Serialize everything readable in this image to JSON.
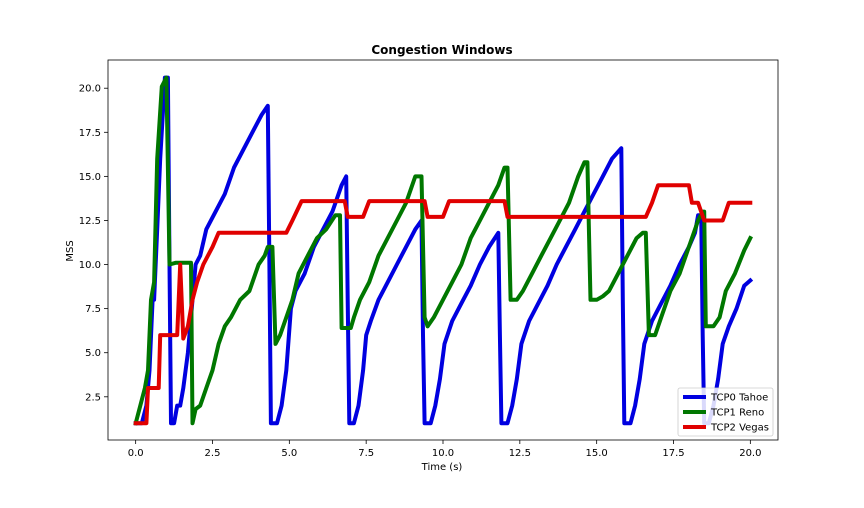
{
  "chart_data": {
    "type": "line",
    "title": "Congestion Windows",
    "xlabel": "Time (s)",
    "ylabel": "MSS",
    "xlim": [
      -0.9,
      20.9
    ],
    "ylim": [
      0.05,
      21.6
    ],
    "xticks": [
      0,
      2.5,
      5,
      7.5,
      10,
      12.5,
      15,
      17.5,
      20
    ],
    "xtick_labels": [
      "0.0",
      "2.5",
      "5.0",
      "7.5",
      "10.0",
      "12.5",
      "15.0",
      "17.5",
      "20.0"
    ],
    "yticks": [
      2.5,
      5,
      7.5,
      10,
      12.5,
      15,
      17.5,
      20
    ],
    "ytick_labels": [
      "2.5",
      "5.0",
      "7.5",
      "10.0",
      "12.5",
      "15.0",
      "17.5",
      "20.0"
    ],
    "grid": false,
    "legend_position": "bottom-right",
    "series": [
      {
        "name": "TCP0 Tahoe",
        "color": "#0000e0",
        "points": [
          [
            0,
            1
          ],
          [
            0.2,
            1
          ],
          [
            0.35,
            2
          ],
          [
            0.45,
            4
          ],
          [
            0.55,
            8
          ],
          [
            0.6,
            8
          ],
          [
            0.7,
            12
          ],
          [
            0.8,
            16
          ],
          [
            0.9,
            19
          ],
          [
            0.95,
            20.6
          ],
          [
            1.05,
            20.6
          ],
          [
            1.1,
            10
          ],
          [
            1.15,
            1
          ],
          [
            1.25,
            1
          ],
          [
            1.35,
            2
          ],
          [
            1.45,
            2
          ],
          [
            1.55,
            3
          ],
          [
            1.7,
            5
          ],
          [
            1.85,
            8
          ],
          [
            1.95,
            10
          ],
          [
            2.1,
            10.5
          ],
          [
            2.3,
            12
          ],
          [
            2.6,
            13
          ],
          [
            2.9,
            14
          ],
          [
            3.2,
            15.5
          ],
          [
            3.5,
            16.5
          ],
          [
            3.8,
            17.5
          ],
          [
            4.1,
            18.5
          ],
          [
            4.3,
            19
          ],
          [
            4.35,
            10
          ],
          [
            4.4,
            1
          ],
          [
            4.6,
            1
          ],
          [
            4.75,
            2
          ],
          [
            4.9,
            4
          ],
          [
            5.05,
            7.5
          ],
          [
            5.2,
            8.5
          ],
          [
            5.5,
            9.5
          ],
          [
            5.8,
            11
          ],
          [
            6.1,
            12
          ],
          [
            6.4,
            13
          ],
          [
            6.7,
            14.5
          ],
          [
            6.85,
            15
          ],
          [
            6.9,
            8
          ],
          [
            6.95,
            1
          ],
          [
            7.1,
            1
          ],
          [
            7.25,
            2
          ],
          [
            7.4,
            4
          ],
          [
            7.5,
            6
          ],
          [
            7.65,
            6.8
          ],
          [
            7.9,
            8
          ],
          [
            8.2,
            9
          ],
          [
            8.5,
            10
          ],
          [
            8.8,
            11
          ],
          [
            9.1,
            12
          ],
          [
            9.3,
            12.5
          ],
          [
            9.35,
            6
          ],
          [
            9.4,
            1
          ],
          [
            9.6,
            1
          ],
          [
            9.75,
            2
          ],
          [
            9.9,
            3.5
          ],
          [
            10.05,
            5.5
          ],
          [
            10.3,
            6.8
          ],
          [
            10.6,
            7.8
          ],
          [
            10.9,
            8.8
          ],
          [
            11.2,
            10
          ],
          [
            11.5,
            11
          ],
          [
            11.8,
            11.8
          ],
          [
            11.85,
            6
          ],
          [
            11.9,
            1
          ],
          [
            12.1,
            1
          ],
          [
            12.25,
            2
          ],
          [
            12.4,
            3.5
          ],
          [
            12.55,
            5.5
          ],
          [
            12.8,
            6.8
          ],
          [
            13.1,
            7.8
          ],
          [
            13.4,
            8.8
          ],
          [
            13.7,
            10
          ],
          [
            14,
            11
          ],
          [
            14.3,
            12
          ],
          [
            14.6,
            13
          ],
          [
            14.9,
            14
          ],
          [
            15.2,
            15
          ],
          [
            15.5,
            16
          ],
          [
            15.8,
            16.6
          ],
          [
            15.85,
            8
          ],
          [
            15.9,
            1
          ],
          [
            16.1,
            1
          ],
          [
            16.25,
            2
          ],
          [
            16.4,
            3.5
          ],
          [
            16.55,
            5.5
          ],
          [
            16.8,
            6.8
          ],
          [
            17.1,
            7.8
          ],
          [
            17.4,
            8.8
          ],
          [
            17.7,
            10
          ],
          [
            18,
            11
          ],
          [
            18.2,
            11.8
          ],
          [
            18.3,
            12.8
          ],
          [
            18.4,
            12.8
          ],
          [
            18.45,
            6
          ],
          [
            18.5,
            1
          ],
          [
            18.65,
            1
          ],
          [
            18.8,
            2
          ],
          [
            18.95,
            3.5
          ],
          [
            19.1,
            5.5
          ],
          [
            19.3,
            6.5
          ],
          [
            19.55,
            7.5
          ],
          [
            19.8,
            8.8
          ],
          [
            20,
            9.1
          ]
        ]
      },
      {
        "name": "TCP1 Reno",
        "color": "#007700",
        "points": [
          [
            0,
            1
          ],
          [
            0.15,
            2
          ],
          [
            0.3,
            3
          ],
          [
            0.4,
            4
          ],
          [
            0.5,
            8
          ],
          [
            0.6,
            9
          ],
          [
            0.7,
            16
          ],
          [
            0.85,
            20.1
          ],
          [
            1.0,
            20.6
          ],
          [
            1.1,
            10
          ],
          [
            1.3,
            10.1
          ],
          [
            1.8,
            10.1
          ],
          [
            1.85,
            1
          ],
          [
            1.95,
            1.8
          ],
          [
            2.1,
            2
          ],
          [
            2.3,
            3
          ],
          [
            2.5,
            4
          ],
          [
            2.7,
            5.5
          ],
          [
            2.9,
            6.5
          ],
          [
            3.1,
            7
          ],
          [
            3.4,
            8
          ],
          [
            3.7,
            8.5
          ],
          [
            4,
            10
          ],
          [
            4.2,
            10.5
          ],
          [
            4.3,
            11
          ],
          [
            4.45,
            11
          ],
          [
            4.55,
            5.5
          ],
          [
            4.7,
            6
          ],
          [
            4.9,
            7
          ],
          [
            5.1,
            8
          ],
          [
            5.3,
            9.5
          ],
          [
            5.6,
            10.5
          ],
          [
            5.9,
            11.5
          ],
          [
            6.2,
            12
          ],
          [
            6.5,
            12.8
          ],
          [
            6.65,
            12.8
          ],
          [
            6.7,
            6.4
          ],
          [
            7.0,
            6.4
          ],
          [
            7.1,
            7
          ],
          [
            7.3,
            8
          ],
          [
            7.6,
            9
          ],
          [
            7.9,
            10.5
          ],
          [
            8.2,
            11.5
          ],
          [
            8.5,
            12.5
          ],
          [
            8.8,
            13.5
          ],
          [
            9.1,
            15
          ],
          [
            9.3,
            15
          ],
          [
            9.4,
            7
          ],
          [
            9.5,
            6.5
          ],
          [
            9.7,
            7
          ],
          [
            10,
            8
          ],
          [
            10.3,
            9
          ],
          [
            10.6,
            10
          ],
          [
            10.9,
            11.5
          ],
          [
            11.2,
            12.5
          ],
          [
            11.5,
            13.5
          ],
          [
            11.8,
            14.5
          ],
          [
            12.0,
            15.5
          ],
          [
            12.1,
            15.5
          ],
          [
            12.2,
            8
          ],
          [
            12.4,
            8
          ],
          [
            12.6,
            8.5
          ],
          [
            12.9,
            9.5
          ],
          [
            13.2,
            10.5
          ],
          [
            13.5,
            11.5
          ],
          [
            13.8,
            12.5
          ],
          [
            14.1,
            13.5
          ],
          [
            14.4,
            15
          ],
          [
            14.6,
            15.8
          ],
          [
            14.7,
            15.8
          ],
          [
            14.8,
            8
          ],
          [
            15.0,
            8
          ],
          [
            15.2,
            8.2
          ],
          [
            15.4,
            8.5
          ],
          [
            15.7,
            9.5
          ],
          [
            16,
            10.5
          ],
          [
            16.3,
            11.5
          ],
          [
            16.5,
            11.8
          ],
          [
            16.6,
            11.8
          ],
          [
            16.7,
            6
          ],
          [
            16.9,
            6
          ],
          [
            17.1,
            7
          ],
          [
            17.4,
            8.5
          ],
          [
            17.7,
            9.5
          ],
          [
            18,
            11
          ],
          [
            18.3,
            12.5
          ],
          [
            18.45,
            13
          ],
          [
            18.5,
            13
          ],
          [
            18.55,
            6.5
          ],
          [
            18.8,
            6.5
          ],
          [
            19,
            7
          ],
          [
            19.2,
            8.5
          ],
          [
            19.5,
            9.5
          ],
          [
            19.8,
            10.8
          ],
          [
            20,
            11.5
          ]
        ]
      },
      {
        "name": "TCP2 Vegas",
        "color": "#e00000",
        "points": [
          [
            0,
            1
          ],
          [
            0.35,
            1
          ],
          [
            0.4,
            3
          ],
          [
            0.75,
            3
          ],
          [
            0.8,
            6
          ],
          [
            1.35,
            6
          ],
          [
            1.45,
            10
          ],
          [
            1.55,
            5.8
          ],
          [
            1.7,
            6.5
          ],
          [
            1.85,
            8
          ],
          [
            2.0,
            9
          ],
          [
            2.2,
            10
          ],
          [
            2.5,
            11
          ],
          [
            2.7,
            11.8
          ],
          [
            4.9,
            11.8
          ],
          [
            5.1,
            12.5
          ],
          [
            5.4,
            13.6
          ],
          [
            6.6,
            13.6
          ],
          [
            6.8,
            13.6
          ],
          [
            6.9,
            12.7
          ],
          [
            7.4,
            12.7
          ],
          [
            7.6,
            13.6
          ],
          [
            9.4,
            13.6
          ],
          [
            9.5,
            12.7
          ],
          [
            10.0,
            12.7
          ],
          [
            10.2,
            13.6
          ],
          [
            12.0,
            13.6
          ],
          [
            12.1,
            12.7
          ],
          [
            16.6,
            12.7
          ],
          [
            16.8,
            13.5
          ],
          [
            17.0,
            14.5
          ],
          [
            18.0,
            14.5
          ],
          [
            18.1,
            13.5
          ],
          [
            18.3,
            13.5
          ],
          [
            18.5,
            12.5
          ],
          [
            19.1,
            12.5
          ],
          [
            19.3,
            13.5
          ],
          [
            20,
            13.5
          ]
        ]
      }
    ]
  }
}
